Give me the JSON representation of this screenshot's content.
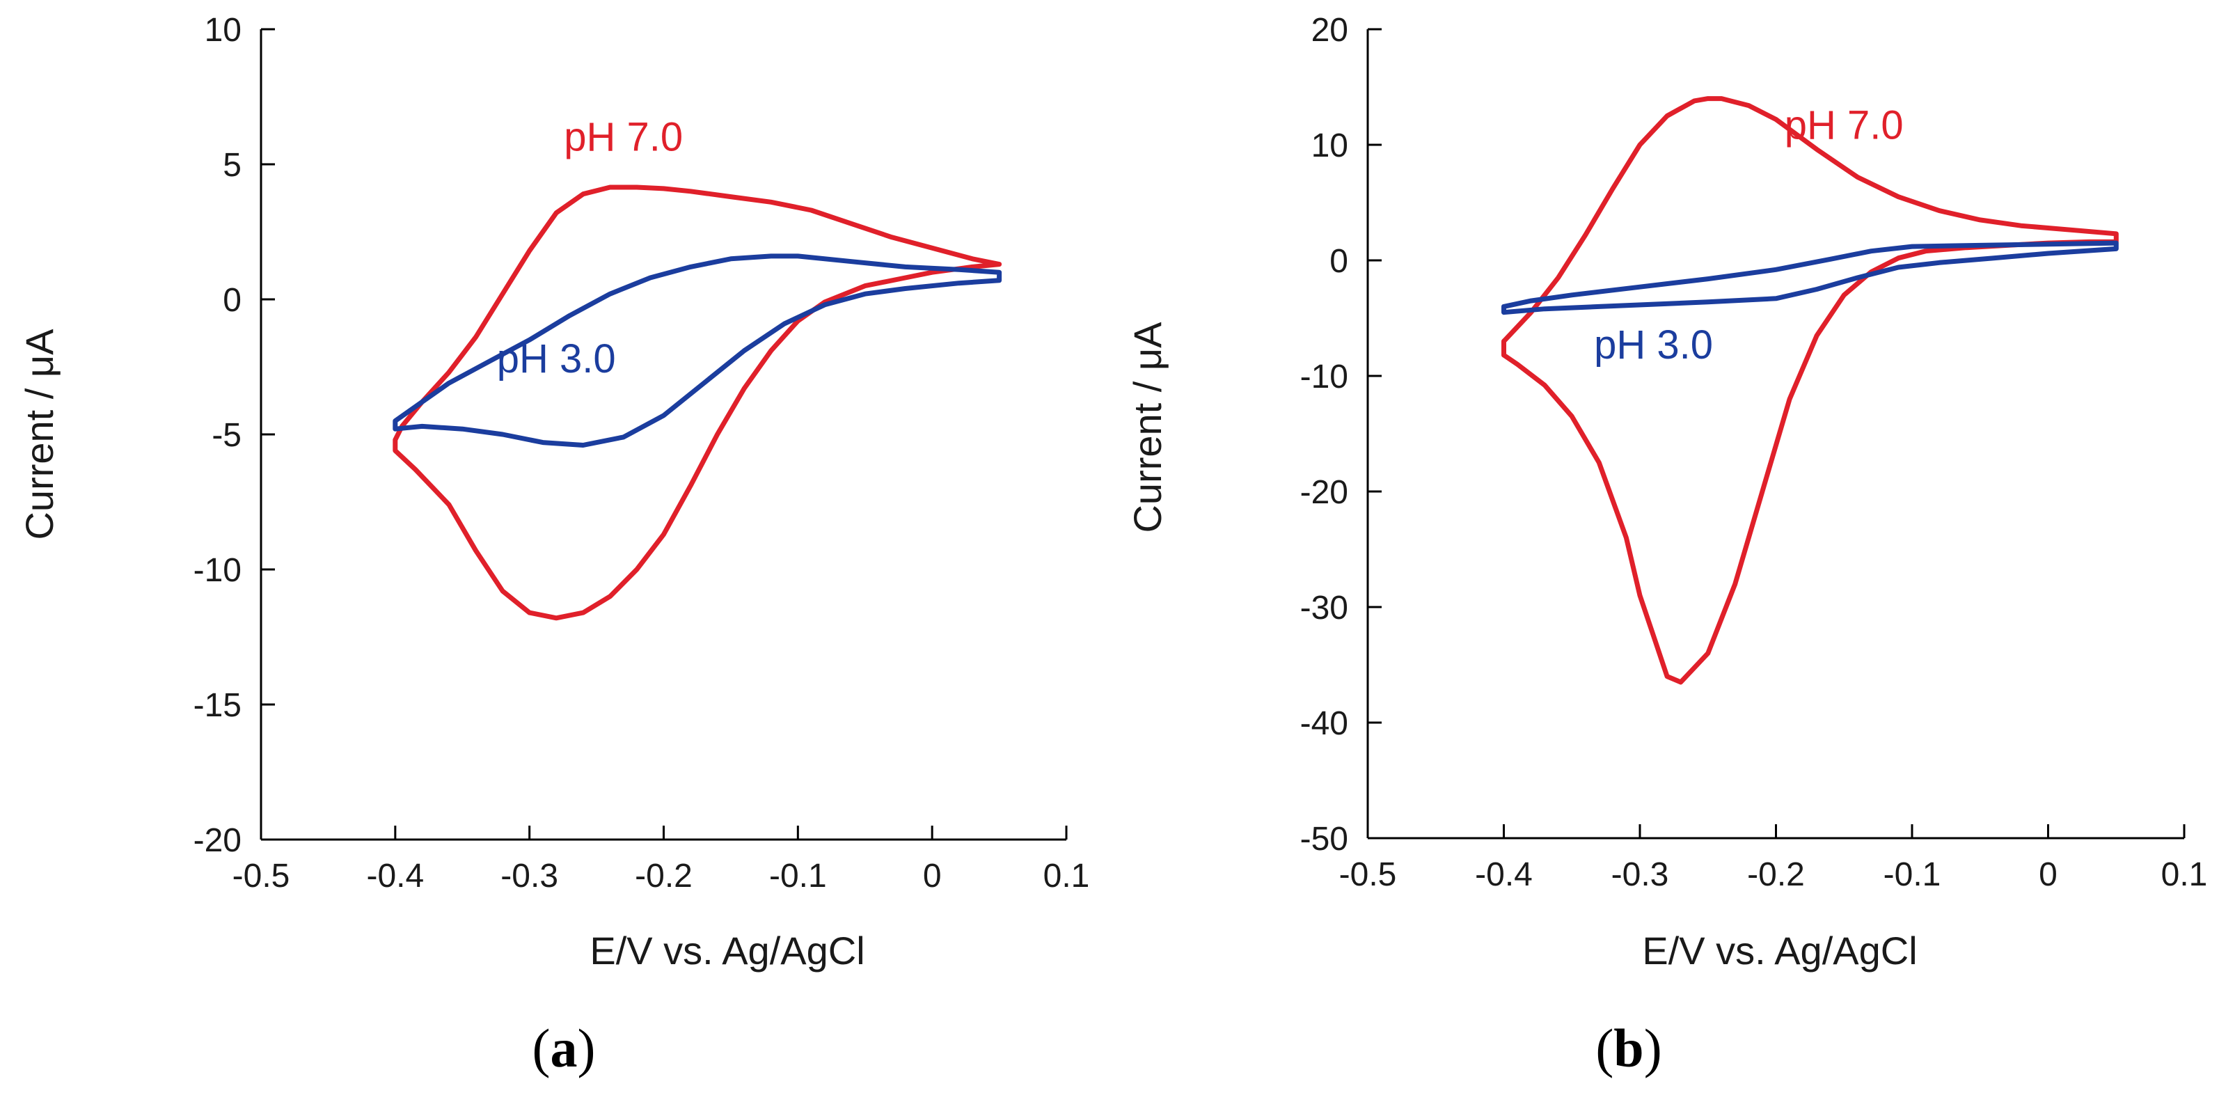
{
  "figure": {
    "panel_labels": [
      "a",
      "b"
    ]
  },
  "chart_data": [
    {
      "type": "line",
      "panel": "a",
      "title": "",
      "xlabel": "E/V vs. Ag/AgCl",
      "ylabel": "Current /  μA",
      "xlim": [
        -0.5,
        0.1
      ],
      "ylim": [
        -20,
        10
      ],
      "xticks": [
        -0.5,
        -0.4,
        -0.3,
        -0.2,
        -0.1,
        0,
        0.1
      ],
      "xtick_labels": [
        "-0.5",
        "-0.4",
        "-0.3",
        "-0.2",
        "-0.1",
        "0",
        "0.1"
      ],
      "yticks": [
        10,
        5,
        0,
        -5,
        -10,
        -15,
        -20
      ],
      "ytick_labels": [
        "10",
        "5",
        "0",
        "-5",
        "-10",
        "-15",
        "-20"
      ],
      "grid": false,
      "series": [
        {
          "name": "pH 7.0",
          "color": "#e0202a",
          "label_at": [
            -0.23,
            5.5
          ],
          "x": [
            0.05,
            0.03,
            0.0,
            -0.03,
            -0.06,
            -0.09,
            -0.12,
            -0.15,
            -0.18,
            -0.2,
            -0.22,
            -0.24,
            -0.26,
            -0.28,
            -0.3,
            -0.32,
            -0.34,
            -0.36,
            -0.38,
            -0.395,
            -0.4,
            -0.4,
            -0.385,
            -0.36,
            -0.34,
            -0.32,
            -0.3,
            -0.28,
            -0.26,
            -0.24,
            -0.22,
            -0.2,
            -0.18,
            -0.16,
            -0.14,
            -0.12,
            -0.1,
            -0.08,
            -0.05,
            -0.02,
            0.0,
            0.03,
            0.05
          ],
          "y": [
            1.3,
            1.5,
            1.9,
            2.3,
            2.8,
            3.3,
            3.6,
            3.8,
            4.0,
            4.1,
            4.15,
            4.15,
            3.9,
            3.2,
            1.8,
            0.2,
            -1.4,
            -2.7,
            -3.8,
            -4.7,
            -5.2,
            -5.6,
            -6.3,
            -7.6,
            -9.3,
            -10.8,
            -11.6,
            -11.8,
            -11.6,
            -11.0,
            -10.0,
            -8.7,
            -6.9,
            -5.0,
            -3.3,
            -1.9,
            -0.8,
            -0.1,
            0.5,
            0.8,
            1.0,
            1.2,
            1.3
          ]
        },
        {
          "name": "pH 3.0",
          "color": "#1b3d9e",
          "label_at": [
            -0.28,
            -2.7
          ],
          "x": [
            0.05,
            0.02,
            -0.02,
            -0.06,
            -0.1,
            -0.12,
            -0.15,
            -0.18,
            -0.21,
            -0.24,
            -0.27,
            -0.3,
            -0.33,
            -0.36,
            -0.38,
            -0.4,
            -0.4,
            -0.38,
            -0.35,
            -0.32,
            -0.29,
            -0.26,
            -0.23,
            -0.2,
            -0.17,
            -0.14,
            -0.11,
            -0.08,
            -0.05,
            -0.02,
            0.02,
            0.05
          ],
          "y": [
            1.0,
            1.1,
            1.2,
            1.4,
            1.6,
            1.6,
            1.5,
            1.2,
            0.8,
            0.2,
            -0.6,
            -1.5,
            -2.3,
            -3.1,
            -3.8,
            -4.5,
            -4.8,
            -4.7,
            -4.8,
            -5.0,
            -5.3,
            -5.4,
            -5.1,
            -4.3,
            -3.1,
            -1.9,
            -0.9,
            -0.2,
            0.2,
            0.4,
            0.6,
            0.7
          ]
        }
      ]
    },
    {
      "type": "line",
      "panel": "b",
      "title": "",
      "xlabel": "E/V vs. Ag/AgCl",
      "ylabel": "Current /  μA",
      "xlim": [
        -0.5,
        0.1
      ],
      "ylim": [
        -50,
        20
      ],
      "xticks": [
        -0.5,
        -0.4,
        -0.3,
        -0.2,
        -0.1,
        0,
        0.1
      ],
      "xtick_labels": [
        "-0.5",
        "-0.4",
        "-0.3",
        "-0.2",
        "-0.1",
        "0",
        "0.1"
      ],
      "yticks": [
        20,
        10,
        0,
        -10,
        -20,
        -30,
        -40,
        -50
      ],
      "ytick_labels": [
        "20",
        "10",
        "0",
        "-10",
        "-20",
        "-30",
        "-40",
        "-50"
      ],
      "grid": false,
      "series": [
        {
          "name": "pH 7.0",
          "color": "#e0202a",
          "label_at": [
            -0.15,
            10.5
          ],
          "x": [
            0.05,
            0.02,
            -0.02,
            -0.05,
            -0.08,
            -0.11,
            -0.14,
            -0.17,
            -0.2,
            -0.22,
            -0.24,
            -0.25,
            -0.26,
            -0.28,
            -0.3,
            -0.32,
            -0.34,
            -0.36,
            -0.38,
            -0.4,
            -0.4,
            -0.39,
            -0.37,
            -0.35,
            -0.33,
            -0.31,
            -0.3,
            -0.29,
            -0.28,
            -0.27,
            -0.25,
            -0.23,
            -0.21,
            -0.19,
            -0.17,
            -0.15,
            -0.13,
            -0.11,
            -0.09,
            -0.06,
            -0.03,
            0.0,
            0.03,
            0.05
          ],
          "y": [
            2.3,
            2.6,
            3.0,
            3.5,
            4.3,
            5.5,
            7.2,
            9.6,
            12.2,
            13.4,
            14.0,
            14.0,
            13.8,
            12.5,
            10.0,
            6.2,
            2.2,
            -1.5,
            -4.5,
            -7.0,
            -8.2,
            -9.0,
            -10.8,
            -13.5,
            -17.5,
            -24.0,
            -29.0,
            -32.5,
            -36.0,
            -36.5,
            -34.0,
            -28.0,
            -20.0,
            -12.0,
            -6.5,
            -3.0,
            -1.0,
            0.2,
            0.8,
            1.1,
            1.3,
            1.5,
            1.6,
            1.6
          ]
        },
        {
          "name": "pH 3.0",
          "color": "#1b3d9e",
          "label_at": [
            -0.29,
            -8.5
          ],
          "x": [
            0.05,
            0.0,
            -0.05,
            -0.1,
            -0.13,
            -0.16,
            -0.2,
            -0.25,
            -0.3,
            -0.35,
            -0.38,
            -0.4,
            -0.4,
            -0.37,
            -0.33,
            -0.29,
            -0.25,
            -0.2,
            -0.17,
            -0.14,
            -0.11,
            -0.08,
            -0.04,
            0.0,
            0.05
          ],
          "y": [
            1.5,
            1.4,
            1.3,
            1.2,
            0.8,
            0.1,
            -0.8,
            -1.6,
            -2.3,
            -3.0,
            -3.5,
            -4.0,
            -4.5,
            -4.2,
            -4.0,
            -3.8,
            -3.6,
            -3.3,
            -2.5,
            -1.5,
            -0.6,
            -0.2,
            0.2,
            0.6,
            1.0
          ]
        }
      ]
    }
  ]
}
